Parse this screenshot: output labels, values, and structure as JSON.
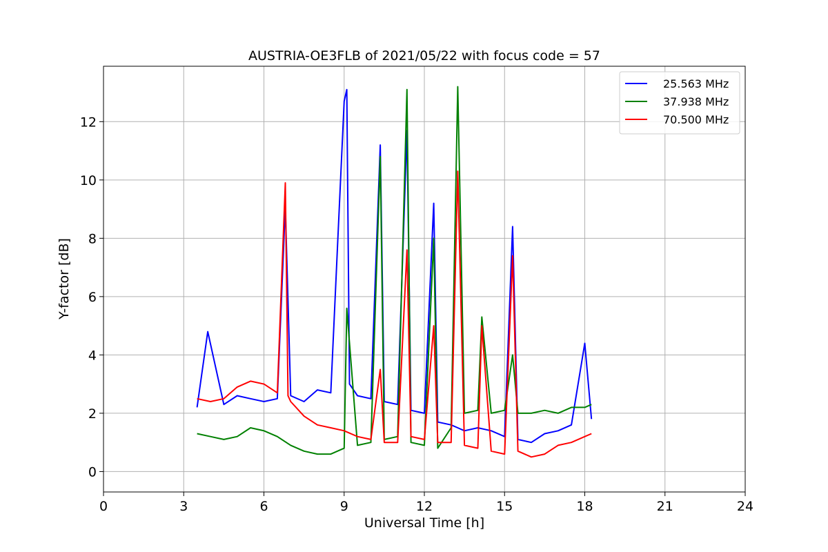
{
  "chart_data": {
    "type": "line",
    "title": "AUSTRIA-OE3FLB of 2021/05/22 with focus code = 57",
    "xlabel": "Universal Time [h]",
    "ylabel": "Y-factor [dB]",
    "xlim": [
      0,
      24
    ],
    "ylim": [
      -0.7,
      13.9
    ],
    "xticks": [
      0,
      3,
      6,
      9,
      12,
      15,
      18,
      21,
      24
    ],
    "xtick_labels": [
      "0",
      "3",
      "6",
      "9",
      "12",
      "15",
      "18",
      "21",
      "24"
    ],
    "yticks": [
      0,
      2,
      4,
      6,
      8,
      10,
      12
    ],
    "ytick_labels": [
      "0",
      "2",
      "4",
      "6",
      "8",
      "10",
      "12"
    ],
    "grid": true,
    "legend_position": "top-right",
    "series": [
      {
        "name": "25.563 MHz",
        "color": "#0000ff",
        "x": [
          3.5,
          3.9,
          4.5,
          5.0,
          5.5,
          6.0,
          6.5,
          6.8,
          7.0,
          7.5,
          8.0,
          8.5,
          9.0,
          9.1,
          9.2,
          9.5,
          10.0,
          10.35,
          10.5,
          11.0,
          11.35,
          11.5,
          12.0,
          12.35,
          12.5,
          13.0,
          13.25,
          13.5,
          14.0,
          14.5,
          15.0,
          15.3,
          15.5,
          16.0,
          16.5,
          17.0,
          17.5,
          18.0,
          18.25
        ],
        "y": [
          2.2,
          4.8,
          2.3,
          2.6,
          2.5,
          2.4,
          2.5,
          9.1,
          2.6,
          2.4,
          2.8,
          2.7,
          12.7,
          13.1,
          3.0,
          2.6,
          2.5,
          11.2,
          2.4,
          2.3,
          11.7,
          2.1,
          2.0,
          9.2,
          1.7,
          1.6,
          1.5,
          1.4,
          1.5,
          1.4,
          1.2,
          8.4,
          1.1,
          1.0,
          1.3,
          1.4,
          1.6,
          4.4,
          1.8
        ]
      },
      {
        "name": "37.938 MHz",
        "color": "#008000",
        "x": [
          3.5,
          4.0,
          4.5,
          5.0,
          5.5,
          6.0,
          6.5,
          7.0,
          7.5,
          8.0,
          8.5,
          9.0,
          9.1,
          9.5,
          10.0,
          10.35,
          10.5,
          11.0,
          11.35,
          11.5,
          12.0,
          12.35,
          12.5,
          13.0,
          13.25,
          13.5,
          14.0,
          14.15,
          14.5,
          15.0,
          15.3,
          15.5,
          16.0,
          16.5,
          17.0,
          17.5,
          18.0,
          18.25
        ],
        "y": [
          1.3,
          1.2,
          1.1,
          1.2,
          1.5,
          1.4,
          1.2,
          0.9,
          0.7,
          0.6,
          0.6,
          0.8,
          5.6,
          0.9,
          1.0,
          10.8,
          1.1,
          1.2,
          13.1,
          1.0,
          0.9,
          8.0,
          0.8,
          1.5,
          13.2,
          2.0,
          2.1,
          5.3,
          2.0,
          2.1,
          4.0,
          2.0,
          2.0,
          2.1,
          2.0,
          2.2,
          2.2,
          2.3
        ]
      },
      {
        "name": "70.500 MHz",
        "color": "#ff0000",
        "x": [
          3.5,
          4.0,
          4.5,
          5.0,
          5.5,
          6.0,
          6.5,
          6.8,
          6.9,
          7.0,
          7.5,
          8.0,
          8.5,
          9.0,
          9.5,
          10.0,
          10.35,
          10.5,
          11.0,
          11.35,
          11.5,
          12.0,
          12.35,
          12.5,
          13.0,
          13.25,
          13.5,
          14.0,
          14.15,
          14.5,
          15.0,
          15.3,
          15.5,
          16.0,
          16.5,
          17.0,
          17.5,
          18.0,
          18.25
        ],
        "y": [
          2.5,
          2.4,
          2.5,
          2.9,
          3.1,
          3.0,
          2.7,
          9.9,
          2.6,
          2.4,
          1.9,
          1.6,
          1.5,
          1.4,
          1.2,
          1.1,
          3.5,
          1.0,
          1.0,
          7.6,
          1.2,
          1.1,
          5.0,
          1.0,
          1.0,
          10.3,
          0.9,
          0.8,
          5.0,
          0.7,
          0.6,
          7.4,
          0.7,
          0.5,
          0.6,
          0.9,
          1.0,
          1.2,
          1.3
        ]
      }
    ]
  }
}
